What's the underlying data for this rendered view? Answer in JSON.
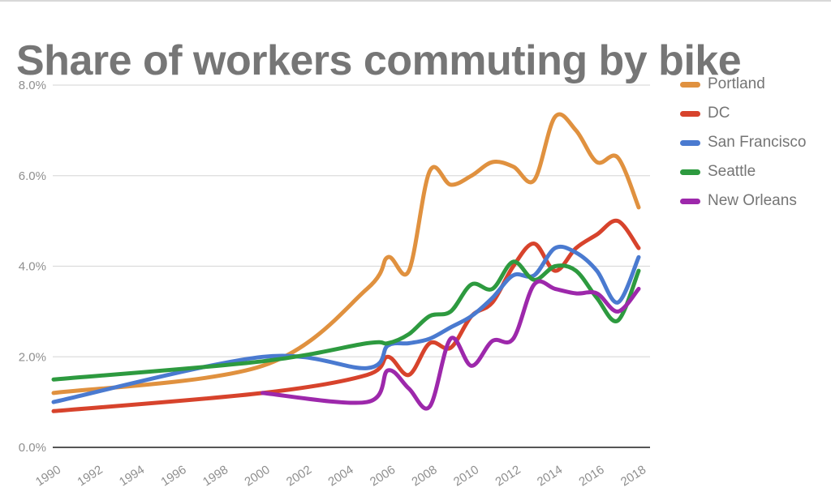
{
  "page": {
    "title": "Share of workers commuting by bike"
  },
  "chart_data": {
    "type": "line",
    "title": "Share of workers commuting by bike",
    "xlabel": "",
    "ylabel": "",
    "x_range": [
      1990,
      2018
    ],
    "y_range": [
      0,
      8
    ],
    "grid": true,
    "legend_position": "right",
    "line_smoothing": true,
    "axis_text_color": "#8f8f8f",
    "gridline_color": "#dcdcdc",
    "axis_line_color": "#565656",
    "y_ticks": [
      {
        "value": 0,
        "label": "0.0%"
      },
      {
        "value": 2,
        "label": "2.0%"
      },
      {
        "value": 4,
        "label": "4.0%"
      },
      {
        "value": 6,
        "label": "6.0%"
      },
      {
        "value": 8,
        "label": "8.0%"
      }
    ],
    "x_ticks": [
      {
        "value": 1990,
        "label": "1990"
      },
      {
        "value": 1992,
        "label": "1992"
      },
      {
        "value": 1994,
        "label": "1994"
      },
      {
        "value": 1996,
        "label": "1996"
      },
      {
        "value": 1998,
        "label": "1998"
      },
      {
        "value": 2000,
        "label": "2000"
      },
      {
        "value": 2002,
        "label": "2002"
      },
      {
        "value": 2004,
        "label": "2004"
      },
      {
        "value": 2006,
        "label": "2006"
      },
      {
        "value": 2008,
        "label": "2008"
      },
      {
        "value": 2010,
        "label": "2010"
      },
      {
        "value": 2012,
        "label": "2012"
      },
      {
        "value": 2014,
        "label": "2014"
      },
      {
        "value": 2016,
        "label": "2016"
      },
      {
        "value": 2018,
        "label": "2018"
      }
    ],
    "series": [
      {
        "name": "Portland",
        "color": "#e0913f",
        "points": [
          [
            1990,
            1.2
          ],
          [
            2000,
            1.8
          ],
          [
            2005,
            3.5
          ],
          [
            2006,
            4.2
          ],
          [
            2007,
            3.9
          ],
          [
            2008,
            6.1
          ],
          [
            2009,
            5.8
          ],
          [
            2010,
            6.0
          ],
          [
            2011,
            6.3
          ],
          [
            2012,
            6.2
          ],
          [
            2013,
            5.9
          ],
          [
            2014,
            7.3
          ],
          [
            2015,
            7.0
          ],
          [
            2016,
            6.3
          ],
          [
            2017,
            6.4
          ],
          [
            2018,
            5.3
          ]
        ]
      },
      {
        "name": "DC",
        "color": "#d7432c",
        "points": [
          [
            1990,
            0.8
          ],
          [
            2000,
            1.2
          ],
          [
            2005,
            1.6
          ],
          [
            2006,
            2.0
          ],
          [
            2007,
            1.6
          ],
          [
            2008,
            2.3
          ],
          [
            2009,
            2.2
          ],
          [
            2010,
            2.9
          ],
          [
            2011,
            3.2
          ],
          [
            2012,
            4.0
          ],
          [
            2013,
            4.5
          ],
          [
            2014,
            3.9
          ],
          [
            2015,
            4.4
          ],
          [
            2016,
            4.7
          ],
          [
            2017,
            5.0
          ],
          [
            2018,
            4.4
          ]
        ]
      },
      {
        "name": "San Francisco",
        "color": "#4a7ad0",
        "points": [
          [
            1990,
            1.0
          ],
          [
            2000,
            2.0
          ],
          [
            2005,
            1.75
          ],
          [
            2006,
            2.25
          ],
          [
            2007,
            2.3
          ],
          [
            2008,
            2.4
          ],
          [
            2009,
            2.65
          ],
          [
            2010,
            2.9
          ],
          [
            2011,
            3.3
          ],
          [
            2012,
            3.8
          ],
          [
            2013,
            3.8
          ],
          [
            2014,
            4.4
          ],
          [
            2015,
            4.3
          ],
          [
            2016,
            3.9
          ],
          [
            2017,
            3.2
          ],
          [
            2018,
            4.2
          ]
        ]
      },
      {
        "name": "Seattle",
        "color": "#2d9a3f",
        "points": [
          [
            1990,
            1.5
          ],
          [
            2000,
            1.9
          ],
          [
            2005,
            2.3
          ],
          [
            2006,
            2.3
          ],
          [
            2007,
            2.5
          ],
          [
            2008,
            2.9
          ],
          [
            2009,
            3.0
          ],
          [
            2010,
            3.6
          ],
          [
            2011,
            3.5
          ],
          [
            2012,
            4.1
          ],
          [
            2013,
            3.7
          ],
          [
            2014,
            4.0
          ],
          [
            2015,
            3.9
          ],
          [
            2016,
            3.3
          ],
          [
            2017,
            2.8
          ],
          [
            2018,
            3.9
          ]
        ]
      },
      {
        "name": "New Orleans",
        "color": "#9d28ab",
        "points": [
          [
            2000,
            1.2
          ],
          [
            2005,
            1.0
          ],
          [
            2006,
            1.7
          ],
          [
            2007,
            1.3
          ],
          [
            2008,
            0.9
          ],
          [
            2009,
            2.4
          ],
          [
            2010,
            1.8
          ],
          [
            2011,
            2.35
          ],
          [
            2012,
            2.4
          ],
          [
            2013,
            3.6
          ],
          [
            2014,
            3.5
          ],
          [
            2015,
            3.4
          ],
          [
            2016,
            3.4
          ],
          [
            2017,
            3.0
          ],
          [
            2018,
            3.5
          ]
        ]
      }
    ]
  }
}
